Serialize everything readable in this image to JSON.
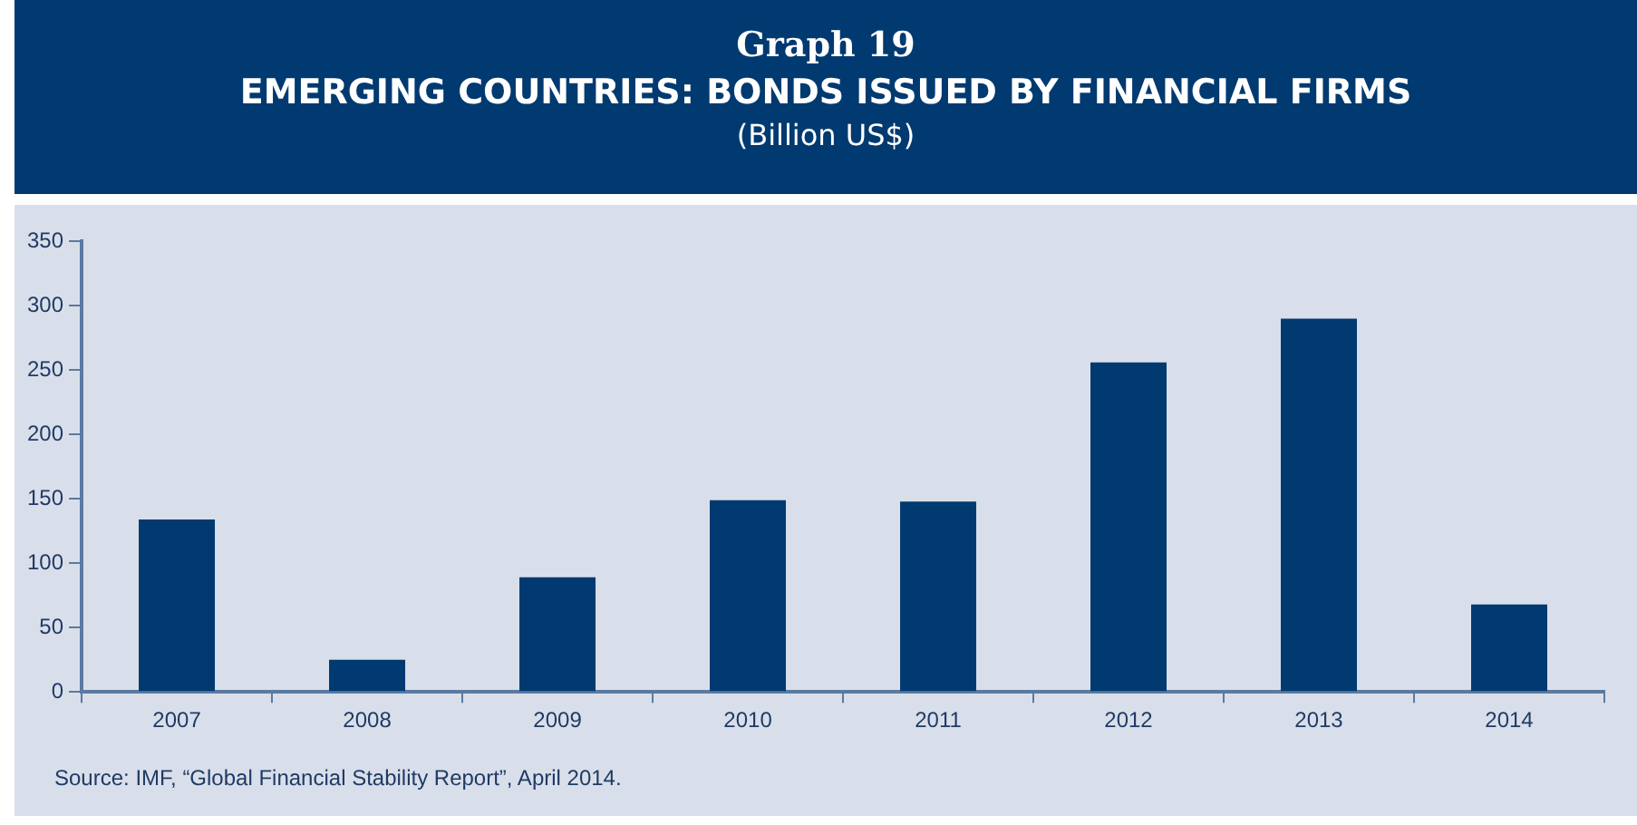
{
  "chart_data": {
    "type": "bar",
    "title": "Graph 19",
    "subtitle": "EMERGING COUNTRIES: BONDS ISSUED BY FINANCIAL FIRMS",
    "ylabel": "(Billion US$)",
    "categories": [
      "2007",
      "2008",
      "2009",
      "2010",
      "2011",
      "2012",
      "2013",
      "2014"
    ],
    "values": [
      134,
      25,
      89,
      149,
      148,
      256,
      290,
      68
    ],
    "color": "#003a70",
    "ylim": [
      0,
      350
    ],
    "yticks": [
      0,
      50,
      100,
      150,
      200,
      250,
      300,
      350
    ],
    "grid": false,
    "annotations": [
      "Source: IMF, “Global Financial Stability Report”, April 2014."
    ]
  }
}
